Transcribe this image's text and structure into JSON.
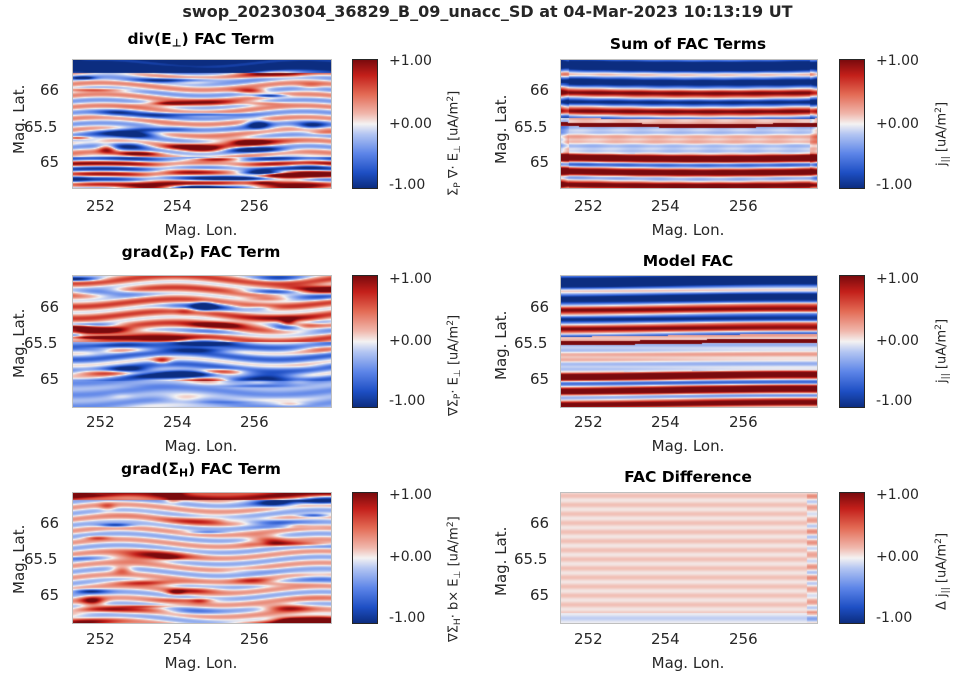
{
  "figure": {
    "title": "swop_20230304_36829_B_09_unacc_SD at 04-Mar-2023 10:13:19 UT"
  },
  "colors": {
    "neg_extreme": "#0c2d80",
    "neg": "#1e4fc4",
    "zero": "#f4f2f2",
    "pos": "#c31f1a",
    "pos_extreme": "#7a0a0d"
  },
  "chart_data": [
    {
      "type": "heatmap",
      "title": "div(E⊥) FAC Term",
      "xlabel": "Mag. Lon.",
      "ylabel": "Mag. Lat.",
      "xticks": [
        "252",
        "254",
        "256"
      ],
      "yticks": [
        "66",
        "65.5",
        "65"
      ],
      "xlim": [
        251.3,
        257.1
      ],
      "ylim": [
        64.65,
        66.4
      ],
      "colorbar": {
        "label": "ΣP ∇· E⊥ [uA/m2]",
        "ticks": [
          "+1.00",
          "+0.00",
          "-1.00"
        ],
        "clim": [
          -1,
          1
        ]
      }
    },
    {
      "type": "heatmap",
      "title": "Sum of FAC Terms",
      "xlabel": "Mag. Lon.",
      "ylabel": "Mag. Lat.",
      "xticks": [
        "252",
        "254",
        "256"
      ],
      "yticks": [
        "66",
        "65.5",
        "65"
      ],
      "xlim": [
        251.3,
        257.1
      ],
      "ylim": [
        64.65,
        66.4
      ],
      "colorbar": {
        "label": "j|| [uA/m2]",
        "ticks": [
          "+1.00",
          "+0.00",
          "-1.00"
        ],
        "clim": [
          -1,
          1
        ]
      }
    },
    {
      "type": "heatmap",
      "title": "grad(ΣP) FAC Term",
      "xlabel": "Mag. Lon.",
      "ylabel": "Mag. Lat.",
      "xticks": [
        "252",
        "254",
        "256"
      ],
      "yticks": [
        "66",
        "65.5",
        "65"
      ],
      "xlim": [
        251.3,
        257.1
      ],
      "ylim": [
        64.65,
        66.4
      ],
      "colorbar": {
        "label": "∇ΣP· E⊥ [uA/m2]",
        "ticks": [
          "+1.00",
          "+0.00",
          "-1.00"
        ],
        "clim": [
          -1,
          1
        ]
      }
    },
    {
      "type": "heatmap",
      "title": "Model FAC",
      "xlabel": "Mag. Lon.",
      "ylabel": "Mag. Lat.",
      "xticks": [
        "252",
        "254",
        "256"
      ],
      "yticks": [
        "66",
        "65.5",
        "65"
      ],
      "xlim": [
        251.3,
        257.1
      ],
      "ylim": [
        64.65,
        66.4
      ],
      "colorbar": {
        "label": "j|| [uA/m2]",
        "ticks": [
          "+1.00",
          "+0.00",
          "-1.00"
        ],
        "clim": [
          -1,
          1
        ]
      }
    },
    {
      "type": "heatmap",
      "title": "grad(ΣH) FAC Term",
      "xlabel": "Mag. Lon.",
      "ylabel": "Mag. Lat.",
      "xticks": [
        "252",
        "254",
        "256"
      ],
      "yticks": [
        "66",
        "65.5",
        "65"
      ],
      "xlim": [
        251.3,
        257.1
      ],
      "ylim": [
        64.65,
        66.4
      ],
      "colorbar": {
        "label": "∇ΣH· b× E⊥ [uA/m2]",
        "ticks": [
          "+1.00",
          "+0.00",
          "-1.00"
        ],
        "clim": [
          -1,
          1
        ]
      }
    },
    {
      "type": "heatmap",
      "title": "FAC Difference",
      "xlabel": "Mag. Lon.",
      "ylabel": "Mag. Lat.",
      "xticks": [
        "252",
        "254",
        "256"
      ],
      "yticks": [
        "66",
        "65.5",
        "65"
      ],
      "xlim": [
        251.3,
        257.1
      ],
      "ylim": [
        64.65,
        66.4
      ],
      "colorbar": {
        "label": "Δ j|| [uA/m2]",
        "ticks": [
          "+1.00",
          "+0.00",
          "-1.00"
        ],
        "clim": [
          -1,
          1
        ]
      }
    }
  ]
}
